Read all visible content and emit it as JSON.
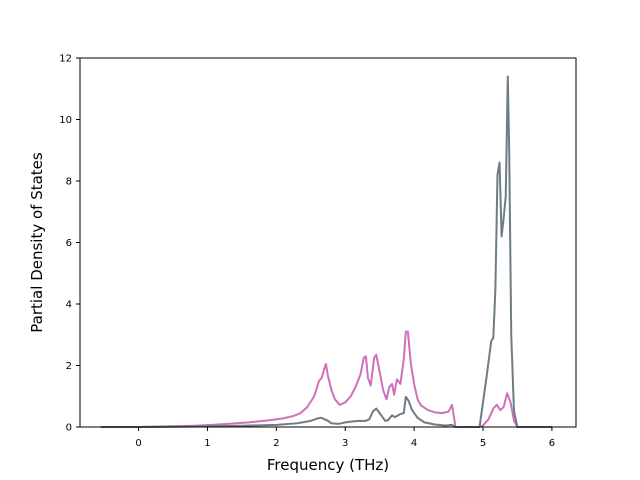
{
  "chart_data": {
    "type": "line",
    "title": "",
    "xlabel": "Frequency (THz)",
    "ylabel": "Partial Density of States",
    "xlim": [
      -0.85,
      6.35
    ],
    "ylim": [
      0,
      12
    ],
    "xticks": [
      0,
      1,
      2,
      3,
      4,
      5,
      6
    ],
    "yticks": [
      0,
      2,
      4,
      6,
      8,
      10,
      12
    ],
    "grid": false,
    "legend": "none",
    "series": [
      {
        "color": "#d070b8",
        "points": [
          [
            -0.55,
            0
          ],
          [
            0.0,
            0.0
          ],
          [
            0.4,
            0.02
          ],
          [
            0.8,
            0.04
          ],
          [
            1.0,
            0.06
          ],
          [
            1.3,
            0.1
          ],
          [
            1.6,
            0.15
          ],
          [
            1.9,
            0.22
          ],
          [
            2.1,
            0.28
          ],
          [
            2.25,
            0.36
          ],
          [
            2.35,
            0.45
          ],
          [
            2.45,
            0.65
          ],
          [
            2.55,
            1.0
          ],
          [
            2.62,
            1.5
          ],
          [
            2.66,
            1.6
          ],
          [
            2.69,
            1.85
          ],
          [
            2.72,
            2.05
          ],
          [
            2.75,
            1.65
          ],
          [
            2.8,
            1.2
          ],
          [
            2.85,
            0.9
          ],
          [
            2.92,
            0.72
          ],
          [
            3.0,
            0.8
          ],
          [
            3.08,
            1.0
          ],
          [
            3.15,
            1.3
          ],
          [
            3.22,
            1.7
          ],
          [
            3.27,
            2.25
          ],
          [
            3.3,
            2.3
          ],
          [
            3.33,
            1.6
          ],
          [
            3.37,
            1.35
          ],
          [
            3.42,
            2.25
          ],
          [
            3.45,
            2.35
          ],
          [
            3.5,
            1.8
          ],
          [
            3.55,
            1.2
          ],
          [
            3.6,
            0.9
          ],
          [
            3.64,
            1.3
          ],
          [
            3.68,
            1.4
          ],
          [
            3.71,
            1.05
          ],
          [
            3.75,
            1.55
          ],
          [
            3.8,
            1.4
          ],
          [
            3.85,
            2.2
          ],
          [
            3.88,
            3.1
          ],
          [
            3.91,
            3.1
          ],
          [
            3.95,
            2.1
          ],
          [
            4.0,
            1.4
          ],
          [
            4.05,
            0.9
          ],
          [
            4.1,
            0.7
          ],
          [
            4.2,
            0.55
          ],
          [
            4.3,
            0.48
          ],
          [
            4.4,
            0.45
          ],
          [
            4.5,
            0.5
          ],
          [
            4.55,
            0.72
          ],
          [
            4.58,
            0.3
          ],
          [
            4.6,
            0.0
          ],
          [
            4.95,
            0.0
          ],
          [
            5.0,
            0.05
          ],
          [
            5.08,
            0.25
          ],
          [
            5.15,
            0.6
          ],
          [
            5.2,
            0.72
          ],
          [
            5.25,
            0.55
          ],
          [
            5.3,
            0.65
          ],
          [
            5.35,
            1.1
          ],
          [
            5.4,
            0.8
          ],
          [
            5.45,
            0.2
          ],
          [
            5.5,
            0.0
          ],
          [
            6.0,
            0.0
          ]
        ]
      },
      {
        "color": "#6e7c86",
        "points": [
          [
            -0.55,
            0
          ],
          [
            0.0,
            0.0
          ],
          [
            0.5,
            0.01
          ],
          [
            1.0,
            0.02
          ],
          [
            1.5,
            0.04
          ],
          [
            2.0,
            0.07
          ],
          [
            2.3,
            0.12
          ],
          [
            2.5,
            0.2
          ],
          [
            2.6,
            0.28
          ],
          [
            2.65,
            0.3
          ],
          [
            2.7,
            0.25
          ],
          [
            2.75,
            0.2
          ],
          [
            2.8,
            0.12
          ],
          [
            2.9,
            0.1
          ],
          [
            3.0,
            0.15
          ],
          [
            3.1,
            0.18
          ],
          [
            3.2,
            0.2
          ],
          [
            3.3,
            0.2
          ],
          [
            3.35,
            0.25
          ],
          [
            3.4,
            0.5
          ],
          [
            3.45,
            0.6
          ],
          [
            3.5,
            0.45
          ],
          [
            3.58,
            0.2
          ],
          [
            3.62,
            0.22
          ],
          [
            3.68,
            0.38
          ],
          [
            3.72,
            0.32
          ],
          [
            3.8,
            0.42
          ],
          [
            3.85,
            0.45
          ],
          [
            3.88,
            0.98
          ],
          [
            3.92,
            0.85
          ],
          [
            3.97,
            0.55
          ],
          [
            4.05,
            0.3
          ],
          [
            4.15,
            0.15
          ],
          [
            4.3,
            0.08
          ],
          [
            4.45,
            0.05
          ],
          [
            4.55,
            0.07
          ],
          [
            4.58,
            0.02
          ],
          [
            4.6,
            0.0
          ],
          [
            4.95,
            0.0
          ],
          [
            5.0,
            0.8
          ],
          [
            5.05,
            1.6
          ],
          [
            5.12,
            2.8
          ],
          [
            5.15,
            2.9
          ],
          [
            5.18,
            4.5
          ],
          [
            5.21,
            8.2
          ],
          [
            5.24,
            8.6
          ],
          [
            5.27,
            6.2
          ],
          [
            5.3,
            6.8
          ],
          [
            5.33,
            7.5
          ],
          [
            5.36,
            11.4
          ],
          [
            5.38,
            9.0
          ],
          [
            5.41,
            3.0
          ],
          [
            5.45,
            0.5
          ],
          [
            5.5,
            0.0
          ],
          [
            6.0,
            0.0
          ]
        ]
      }
    ]
  }
}
